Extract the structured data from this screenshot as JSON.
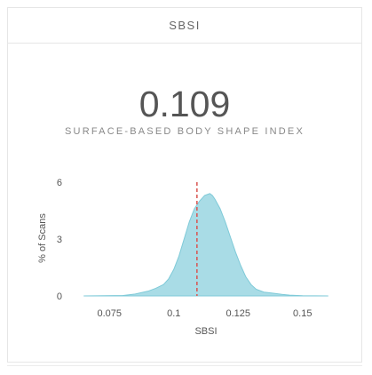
{
  "card": {
    "title": "SBSI",
    "value": "0.109",
    "label": "SURFACE-BASED BODY SHAPE INDEX"
  },
  "chart_data": {
    "type": "area",
    "title": "",
    "xlabel": "SBSI",
    "ylabel": "% of Scans",
    "xlim": [
      0.0625,
      0.1625
    ],
    "ylim": [
      0,
      6
    ],
    "xticks": [
      "0.075",
      "0.1",
      "0.125",
      "0.15"
    ],
    "yticks": [
      "0",
      "3",
      "6"
    ],
    "marker": 0.109,
    "fill_color": "#a9dce6",
    "stroke_color": "#7fcad8",
    "marker_color": "#d9534f",
    "x": [
      0.065,
      0.08,
      0.085,
      0.09,
      0.093,
      0.096,
      0.098,
      0.1,
      0.102,
      0.104,
      0.106,
      0.108,
      0.11,
      0.112,
      0.113,
      0.114,
      0.115,
      0.116,
      0.118,
      0.12,
      0.122,
      0.124,
      0.126,
      0.128,
      0.13,
      0.132,
      0.135,
      0.138,
      0.142,
      0.145,
      0.15,
      0.16
    ],
    "y": [
      0,
      0.02,
      0.1,
      0.25,
      0.4,
      0.6,
      0.9,
      1.4,
      2.1,
      3.0,
      3.9,
      4.6,
      5.0,
      5.3,
      5.35,
      5.4,
      5.3,
      5.1,
      4.6,
      3.9,
      3.1,
      2.3,
      1.6,
      1.0,
      0.6,
      0.35,
      0.2,
      0.15,
      0.08,
      0.04,
      0.01,
      0
    ],
    "colors": {
      "axis_text": "#555555"
    }
  }
}
